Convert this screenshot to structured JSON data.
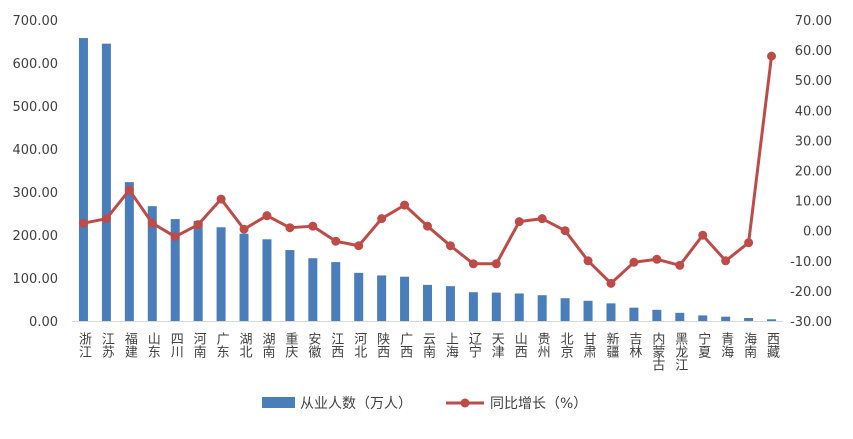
{
  "chart_data": {
    "type": "bar+line",
    "categories": [
      "浙江",
      "江苏",
      "福建",
      "山东",
      "四川",
      "河南",
      "广东",
      "湖北",
      "湖南",
      "重庆",
      "安徽",
      "江西",
      "河北",
      "陕西",
      "广西",
      "云南",
      "上海",
      "辽宁",
      "天津",
      "山西",
      "贵州",
      "北京",
      "甘肃",
      "新疆",
      "吉林",
      "内蒙古",
      "黑龙江",
      "宁夏",
      "青海",
      "海南",
      "西藏"
    ],
    "series": [
      {
        "name": "从业人数（万人）",
        "type": "bar",
        "axis": "left",
        "color": "#4a7ebb",
        "values": [
          658,
          645,
          323,
          267,
          237,
          233,
          218,
          203,
          190,
          165,
          146,
          137,
          112,
          106,
          103,
          84,
          81,
          67,
          66,
          64,
          60,
          53,
          47,
          41,
          31,
          26,
          19,
          13,
          10,
          7,
          4
        ]
      },
      {
        "name": "同比增长（%）",
        "type": "line",
        "axis": "right",
        "color": "#be4b48",
        "values": [
          2.5,
          4.0,
          13.5,
          2.5,
          -2.0,
          2.0,
          10.5,
          0.5,
          5.0,
          1.0,
          1.5,
          -3.5,
          -5.0,
          4.0,
          8.5,
          1.5,
          -5.0,
          -11.0,
          -11.0,
          3.0,
          4.0,
          0.0,
          -10.0,
          -17.5,
          -10.5,
          -9.5,
          -11.5,
          -1.5,
          -10.0,
          -4.0,
          58.0
        ]
      }
    ],
    "y_left": {
      "min": 0,
      "max": 700,
      "step": 100,
      "tick_labels": [
        "0.00",
        "100.00",
        "200.00",
        "300.00",
        "400.00",
        "500.00",
        "600.00",
        "700.00"
      ]
    },
    "y_right": {
      "min": -30,
      "max": 70,
      "step": 10,
      "tick_labels": [
        "-30.00",
        "-20.00",
        "-10.00",
        "0.00",
        "10.00",
        "20.00",
        "30.00",
        "40.00",
        "50.00",
        "60.00",
        "70.00"
      ]
    },
    "grid": false,
    "legend_position": "bottom",
    "title": "",
    "xlabel": "",
    "ylabel": ""
  }
}
